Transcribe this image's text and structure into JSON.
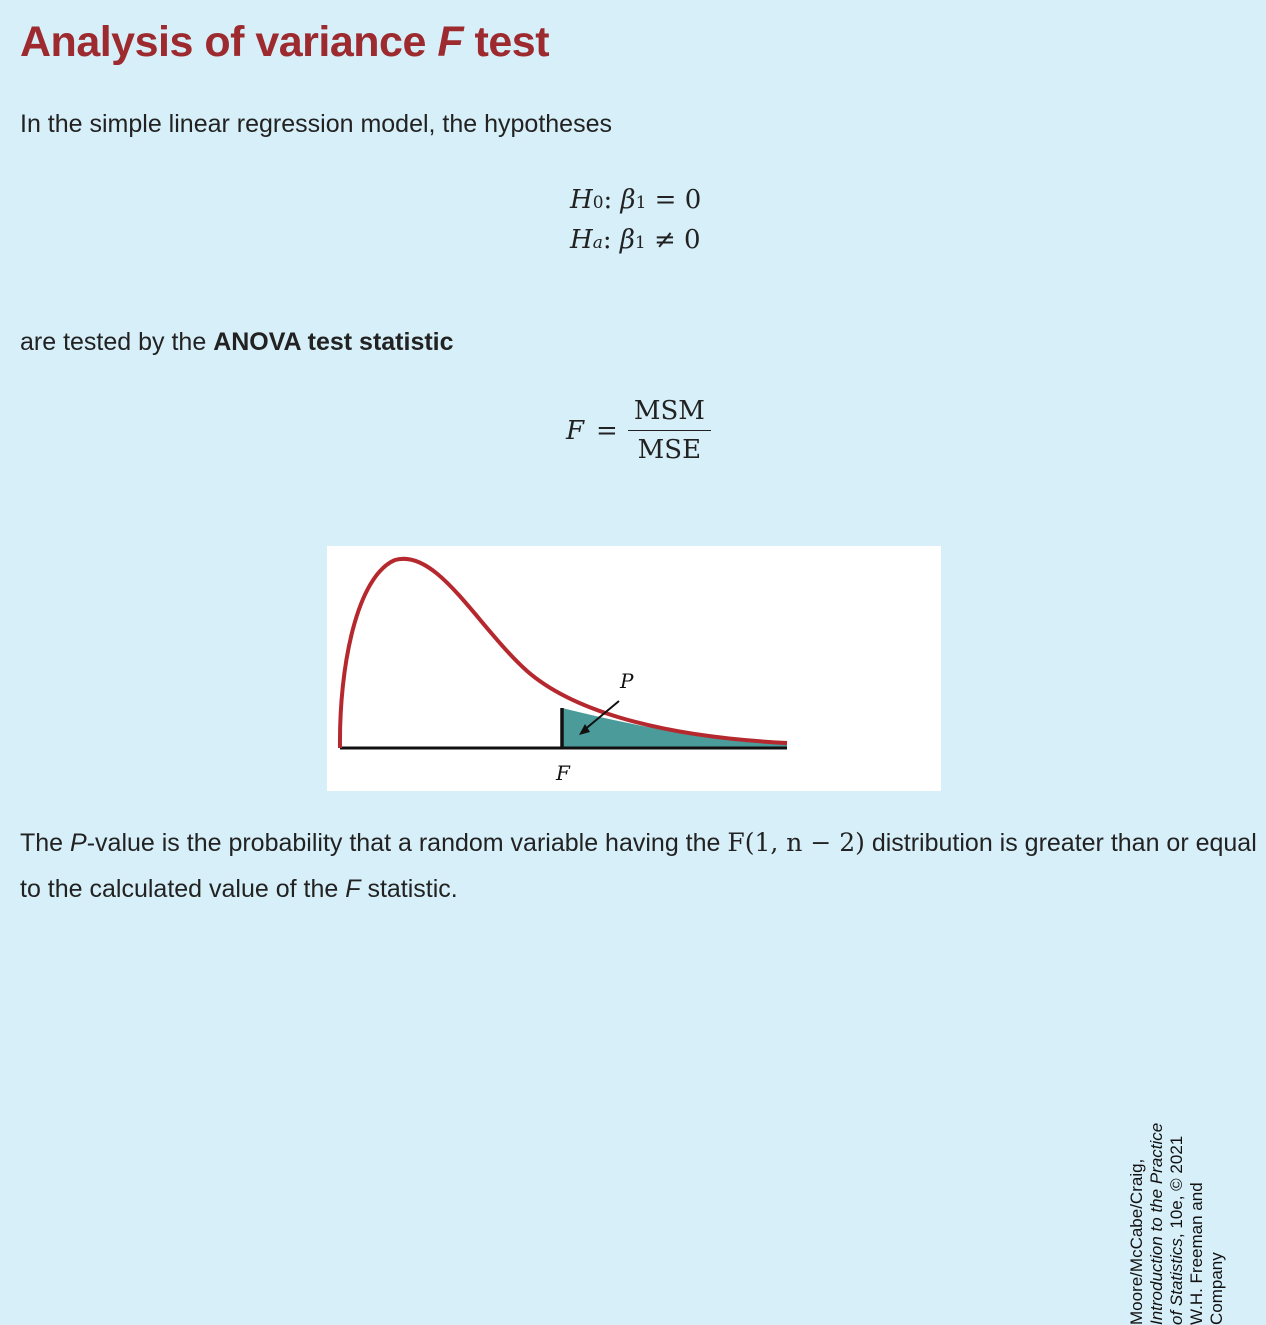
{
  "heading": {
    "pre": "Analysis of variance ",
    "italic": "F",
    "post": " test"
  },
  "intro": "In the simple linear regression model, the hypotheses",
  "hypotheses": {
    "null": {
      "H": "H",
      "sub": "0",
      "sep": ": ",
      "beta": "β",
      "beta_sub": "1",
      "rel": " = ",
      "val": "0"
    },
    "alt": {
      "H": "H",
      "sub": "a",
      "sep": ": ",
      "beta": "β",
      "beta_sub": "1",
      "rel": " ≠ ",
      "val": "0"
    }
  },
  "tested_by": {
    "pre": "are tested by the ",
    "bold": "ANOVA test statistic"
  },
  "formula": {
    "lhs": "F",
    "eq": "=",
    "numerator": "MSM",
    "denominator": "MSE"
  },
  "figure": {
    "label_p": "P",
    "label_f": "F",
    "curve_color": "#b5292e",
    "fill_color": "#4a9b9a",
    "credit": {
      "line1": "Moore/McCabe/Craig,",
      "line2": "Introduction to the Practice",
      "line3": "of Statistics",
      "line3_rest": ", 10e, © 2021",
      "line4": "W.H. Freeman and",
      "line5": "Company"
    }
  },
  "conclusion": {
    "t1": "The ",
    "t2": "P",
    "t3": "-value is the probability that a random variable having the ",
    "math": "F(1, n − 2)",
    "t4": " distribution is greater than or equal to the calculated value of the ",
    "t5": "F",
    "t6": " statistic."
  }
}
